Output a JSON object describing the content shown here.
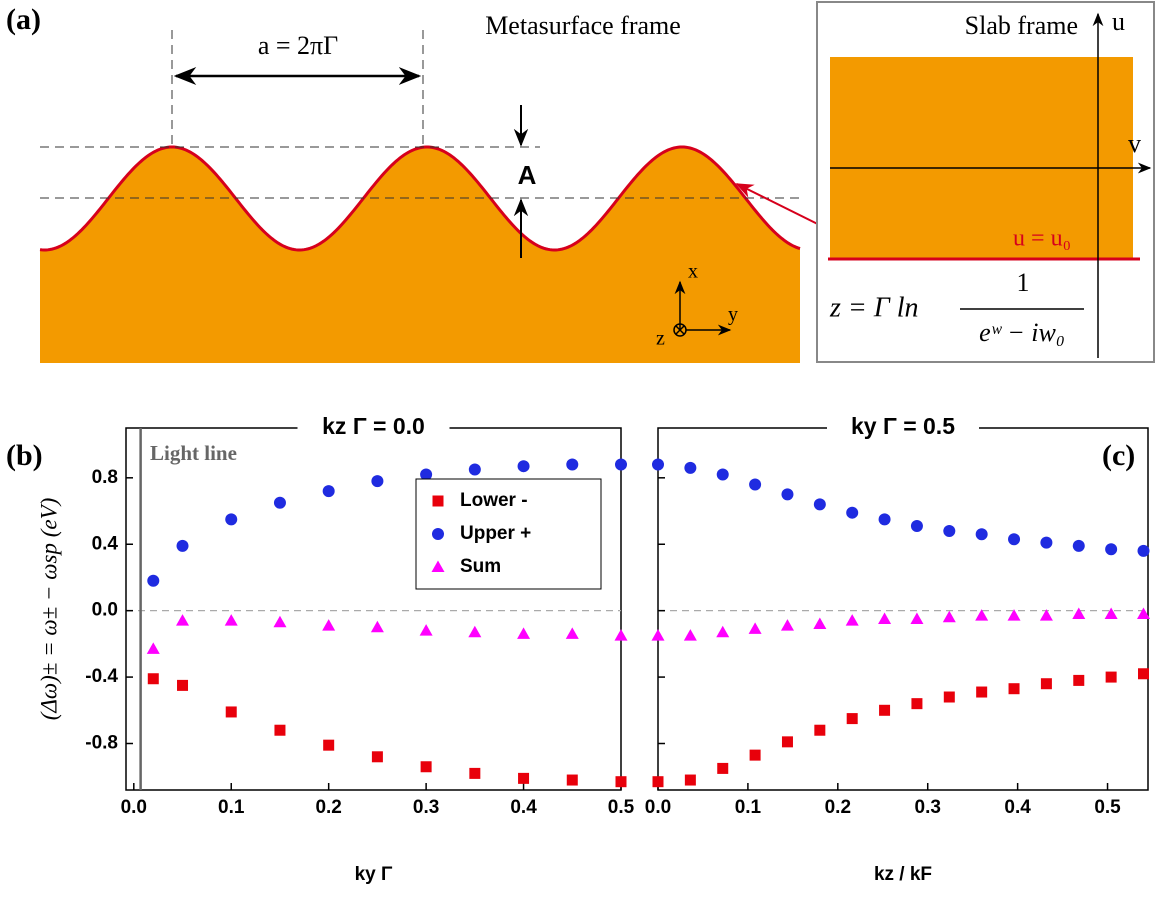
{
  "panel_a": {
    "label": "(a)",
    "metasurface_title": "Metasurface frame",
    "period_label": "a = 2πΓ",
    "amplitude_label": "A",
    "axis_x": "x",
    "axis_y": "y",
    "axis_z": "z",
    "slab_title": "Slab frame",
    "axis_u": "u",
    "axis_v": "v",
    "boundary_label": "u = u₀",
    "formula_lhs": "z = Γ ln",
    "formula_num": "1",
    "formula_den": "eʷ − iw₀"
  },
  "chart_data": [
    {
      "type": "scatter",
      "panel_label": "(b)",
      "title": "kz Γ = 0.0",
      "x_label": "ky Γ",
      "y_label": "(Δω)± = ω± − ωsp (eV)",
      "annotation": "Light line",
      "light_line_x": 0.007,
      "xlim": [
        -0.008,
        0.5
      ],
      "ylim": [
        -1.08,
        1.1
      ],
      "xticks": [
        {
          "value": 0,
          "label": "0.0"
        },
        0.1,
        0.2,
        0.3,
        0.4,
        0.5
      ],
      "yticks": [
        -0.8,
        -0.4,
        {
          "value": 0,
          "label": "0.0"
        },
        0.4,
        0.8
      ],
      "zero_line": true,
      "legend": "center right",
      "x": [
        0.02,
        0.05,
        0.1,
        0.15,
        0.2,
        0.25,
        0.3,
        0.35,
        0.4,
        0.45,
        0.5
      ],
      "series": [
        {
          "name": "Lower -",
          "color": "#e8000b",
          "marker": "square",
          "values": [
            -0.41,
            -0.45,
            -0.61,
            -0.72,
            -0.81,
            -0.88,
            -0.94,
            -0.98,
            -1.01,
            -1.02,
            -1.03
          ]
        },
        {
          "name": "Upper +",
          "color": "#1f2be0",
          "marker": "circle",
          "values": [
            0.18,
            0.39,
            0.55,
            0.65,
            0.72,
            0.78,
            0.82,
            0.85,
            0.87,
            0.88,
            0.88
          ]
        },
        {
          "name": "Sum",
          "color": "#ff00ff",
          "marker": "triangle",
          "values": [
            -0.23,
            -0.06,
            -0.06,
            -0.07,
            -0.09,
            -0.1,
            -0.12,
            -0.13,
            -0.14,
            -0.14,
            -0.15
          ]
        }
      ]
    },
    {
      "type": "scatter",
      "panel_label": "(c)",
      "title": "ky Γ = 0.5",
      "x_label": "kz / kF",
      "xlim": [
        0,
        0.545
      ],
      "ylim": [
        -1.08,
        1.1
      ],
      "xticks": [
        {
          "value": 0,
          "label": "0.0"
        },
        0.1,
        0.2,
        0.3,
        0.4,
        0.5
      ],
      "yticks": [
        -0.8,
        -0.4,
        0,
        0.4,
        0.8
      ],
      "zero_line": true,
      "x": [
        0,
        0.036,
        0.072,
        0.108,
        0.144,
        0.18,
        0.216,
        0.252,
        0.288,
        0.324,
        0.36,
        0.396,
        0.432,
        0.468,
        0.504,
        0.54
      ],
      "series": [
        {
          "name": "Lower -",
          "color": "#e8000b",
          "marker": "square",
          "values": [
            -1.03,
            -1.02,
            -0.95,
            -0.87,
            -0.79,
            -0.72,
            -0.65,
            -0.6,
            -0.56,
            -0.52,
            -0.49,
            -0.47,
            -0.44,
            -0.42,
            -0.4,
            -0.38
          ]
        },
        {
          "name": "Upper +",
          "color": "#1f2be0",
          "marker": "circle",
          "values": [
            0.88,
            0.86,
            0.82,
            0.76,
            0.7,
            0.64,
            0.59,
            0.55,
            0.51,
            0.48,
            0.46,
            0.43,
            0.41,
            0.39,
            0.37,
            0.36
          ]
        },
        {
          "name": "Sum",
          "color": "#ff00ff",
          "marker": "triangle",
          "values": [
            -0.15,
            -0.15,
            -0.13,
            -0.11,
            -0.09,
            -0.08,
            -0.06,
            -0.05,
            -0.05,
            -0.04,
            -0.03,
            -0.03,
            -0.03,
            -0.02,
            -0.02,
            -0.02
          ]
        }
      ]
    }
  ]
}
